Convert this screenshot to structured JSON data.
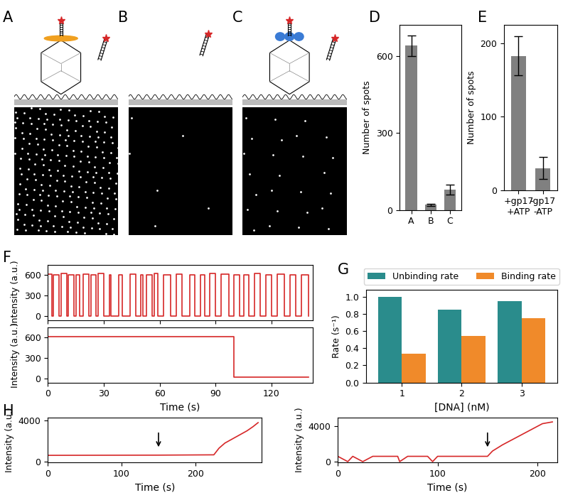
{
  "panel_labels": [
    "A",
    "B",
    "C",
    "D",
    "E",
    "F",
    "G",
    "H"
  ],
  "chart_data": [
    {
      "type": "bar",
      "categories": [
        "A",
        "B",
        "C"
      ],
      "values": [
        640,
        20,
        80
      ],
      "errors": [
        40,
        5,
        20
      ],
      "color": "#808080",
      "ylabel": "Number of spots",
      "ylim": [
        0,
        720
      ],
      "yticks": [
        0,
        300,
        600
      ]
    },
    {
      "type": "bar",
      "categories": [
        "+gp17\n+ATP",
        "-gp17\n-ATP"
      ],
      "values": [
        183,
        30
      ],
      "errors": [
        27,
        15
      ],
      "color": "#808080",
      "ylabel": "Number of spots",
      "ylim": [
        0,
        225
      ],
      "yticks": [
        0,
        100,
        200
      ]
    },
    {
      "type": "line",
      "line_style": "steps",
      "tick_labels": "y",
      "ylabel": "Intensity (a.u.)",
      "x": [
        0,
        2,
        3,
        6,
        7,
        10,
        11,
        14,
        15,
        17,
        19,
        22,
        23,
        26,
        27,
        30,
        33,
        34,
        38,
        40,
        44,
        47,
        50,
        51,
        53,
        56,
        57,
        59,
        62,
        66,
        69,
        72,
        76,
        79,
        82,
        84,
        87,
        90,
        93,
        97,
        100,
        103,
        105,
        108,
        111,
        114,
        117,
        120,
        123,
        127,
        130,
        133,
        136,
        140
      ],
      "series": [
        {
          "color": "#d62728",
          "values": [
            620,
            0,
            600,
            0,
            630,
            0,
            610,
            0,
            600,
            0,
            620,
            0,
            600,
            0,
            630,
            0,
            610,
            0,
            600,
            0,
            620,
            0,
            600,
            0,
            610,
            0,
            630,
            0,
            600,
            0,
            620,
            0,
            610,
            0,
            600,
            0,
            630,
            0,
            620,
            0,
            600,
            0,
            610,
            0,
            630,
            0,
            600,
            0,
            620,
            0,
            610,
            0,
            600,
            0
          ]
        }
      ],
      "xlim": [
        0,
        142
      ],
      "xticks": [
        0,
        30,
        60,
        90,
        120
      ],
      "ylim": [
        -60,
        750
      ],
      "yticks": [
        0,
        300,
        600
      ]
    },
    {
      "type": "line",
      "line_style": "steps",
      "xlabel": "Time (s)",
      "ylabel": "Intensity (a.u.)",
      "x": [
        0,
        100,
        140
      ],
      "series": [
        {
          "color": "#d62728",
          "values": [
            620,
            20,
            20
          ]
        }
      ],
      "xlim": [
        0,
        142
      ],
      "xticks": [
        0,
        30,
        60,
        90,
        120
      ],
      "ylim": [
        -60,
        750
      ],
      "yticks": [
        0,
        300,
        600
      ]
    },
    {
      "type": "bar",
      "categories": [
        "1",
        "2",
        "3"
      ],
      "xlabel": "[DNA] (nM)",
      "ylabel": "Rate (s⁻¹)",
      "series": [
        {
          "name": "Unbinding rate",
          "color": "#2a8c8c",
          "values": [
            1.0,
            0.85,
            0.95
          ]
        },
        {
          "name": "Binding rate",
          "color": "#f08a2a",
          "values": [
            0.34,
            0.54,
            0.75
          ]
        }
      ],
      "legend": "top",
      "ylim": [
        0,
        1.08
      ],
      "yticks": [
        {
          "value": 0,
          "label": "0.0"
        },
        {
          "value": 0.2,
          "label": "0.2"
        },
        {
          "value": 0.4,
          "label": "0.4"
        },
        {
          "value": 0.6,
          "label": "0.6"
        },
        {
          "value": 0.8,
          "label": "0.8"
        },
        {
          "value": 1.0,
          "label": "1.0"
        }
      ]
    },
    {
      "type": "line",
      "xlabel": "Time (s)",
      "ylabel": "Intensity (a.u.)",
      "arrow_x": 150,
      "x": [
        0,
        150,
        225,
        232,
        240,
        250,
        260,
        270,
        278,
        285
      ],
      "series": [
        {
          "color": "#d62728",
          "values": [
            600,
            620,
            650,
            1300,
            1800,
            2200,
            2600,
            3000,
            3400,
            3800
          ]
        }
      ],
      "xlim": [
        0,
        290
      ],
      "xticks": [
        0,
        100,
        200
      ],
      "ylim": [
        -100,
        4300
      ],
      "yticks": [
        0,
        4000
      ]
    },
    {
      "type": "line",
      "xlabel": "Time (s)",
      "ylabel": "Intensity (a.u.)",
      "arrow_x": 150,
      "x": [
        0,
        10,
        15,
        25,
        35,
        60,
        62,
        70,
        90,
        95,
        100,
        150,
        155,
        165,
        175,
        185,
        195,
        205,
        215
      ],
      "series": [
        {
          "color": "#d62728",
          "values": [
            600,
            0,
            600,
            0,
            600,
            600,
            0,
            600,
            600,
            0,
            600,
            600,
            1200,
            1900,
            2500,
            3100,
            3700,
            4300,
            4500
          ]
        }
      ],
      "xlim": [
        0,
        220
      ],
      "xticks": [
        0,
        100,
        200
      ],
      "ylim": [
        -100,
        5000
      ],
      "yticks": [
        0,
        4000
      ]
    }
  ]
}
